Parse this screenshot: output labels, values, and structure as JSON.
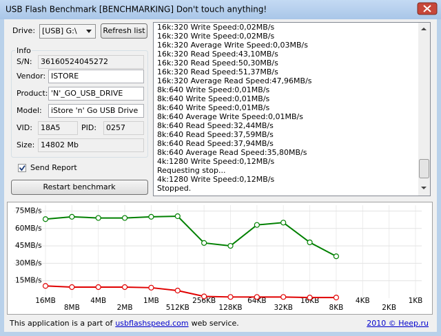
{
  "window": {
    "title": "USB Flash Benchmark [BENCHMARKING] Don't touch anything!"
  },
  "drive": {
    "label": "Drive:",
    "selected": "[USB] G:\\",
    "refresh_button": "Refresh list"
  },
  "info": {
    "title": "Info",
    "fields": [
      {
        "label": "S/N:",
        "value": "36160524045272"
      },
      {
        "label": "Vendor:",
        "value": "ISTORE"
      },
      {
        "label": "Product:",
        "value": "'N'_GO_USB_DRIVE"
      },
      {
        "label": "Model:",
        "value": "iStore 'n' Go USB Drive"
      },
      {
        "label": "VID:",
        "value": "18A5"
      },
      {
        "label": "PID:",
        "value": "0257"
      },
      {
        "label": "Size:",
        "value": "14802 Mb"
      }
    ]
  },
  "send_report": {
    "label": "Send Report",
    "checked": true
  },
  "restart_button": "Restart benchmark",
  "log": [
    "16k:320 Write Speed:0,02MB/s",
    "16k:320 Write Speed:0,02MB/s",
    "16k:320 Average Write Speed:0,03MB/s",
    "16k:320 Read Speed:43,10MB/s",
    "16k:320 Read Speed:50,30MB/s",
    "16k:320 Read Speed:51,37MB/s",
    "16k:320 Average Read Speed:47,96MB/s",
    "8k:640 Write Speed:0,01MB/s",
    "8k:640 Write Speed:0,01MB/s",
    "8k:640 Write Speed:0,01MB/s",
    "8k:640 Average Write Speed:0,01MB/s",
    "8k:640 Read Speed:32,44MB/s",
    "8k:640 Read Speed:37,59MB/s",
    "8k:640 Read Speed:37,94MB/s",
    "8k:640 Average Read Speed:35,80MB/s",
    "4k:1280 Write Speed:0,12MB/s",
    "Requesting stop...",
    "4k:1280 Write Speed:0,12MB/s",
    "Stopped."
  ],
  "chart_data": {
    "type": "line",
    "categories": [
      "16MB",
      "8MB",
      "4MB",
      "2MB",
      "1MB",
      "512KB",
      "256KB",
      "128KB",
      "64KB",
      "32KB",
      "16KB",
      "8KB",
      "4KB",
      "2KB",
      "1KB"
    ],
    "series": [
      {
        "color": "#008000",
        "values": [
          68,
          70,
          69,
          69,
          70,
          70.5,
          47.5,
          45,
          63,
          65,
          48,
          36,
          null,
          null,
          null
        ]
      },
      {
        "color": "#e00000",
        "values": [
          10.5,
          9.5,
          9.5,
          9.5,
          9,
          6.5,
          1.5,
          1,
          1,
          1,
          0.5,
          0.5,
          null,
          null,
          null
        ]
      }
    ],
    "ylim": [
      0,
      80
    ],
    "yticks": [
      {
        "value": 15,
        "label": "15MB/s"
      },
      {
        "value": 30,
        "label": "30MB/s"
      },
      {
        "value": 45,
        "label": "45MB/s"
      },
      {
        "value": 60,
        "label": "60MB/s"
      },
      {
        "value": 75,
        "label": "75MB/s"
      }
    ],
    "grid": true
  },
  "footer": {
    "text": "This application is a part of",
    "link": "usbflashspeed.com",
    "text_after": "web service.",
    "right": "2010 © Heep.ru"
  }
}
